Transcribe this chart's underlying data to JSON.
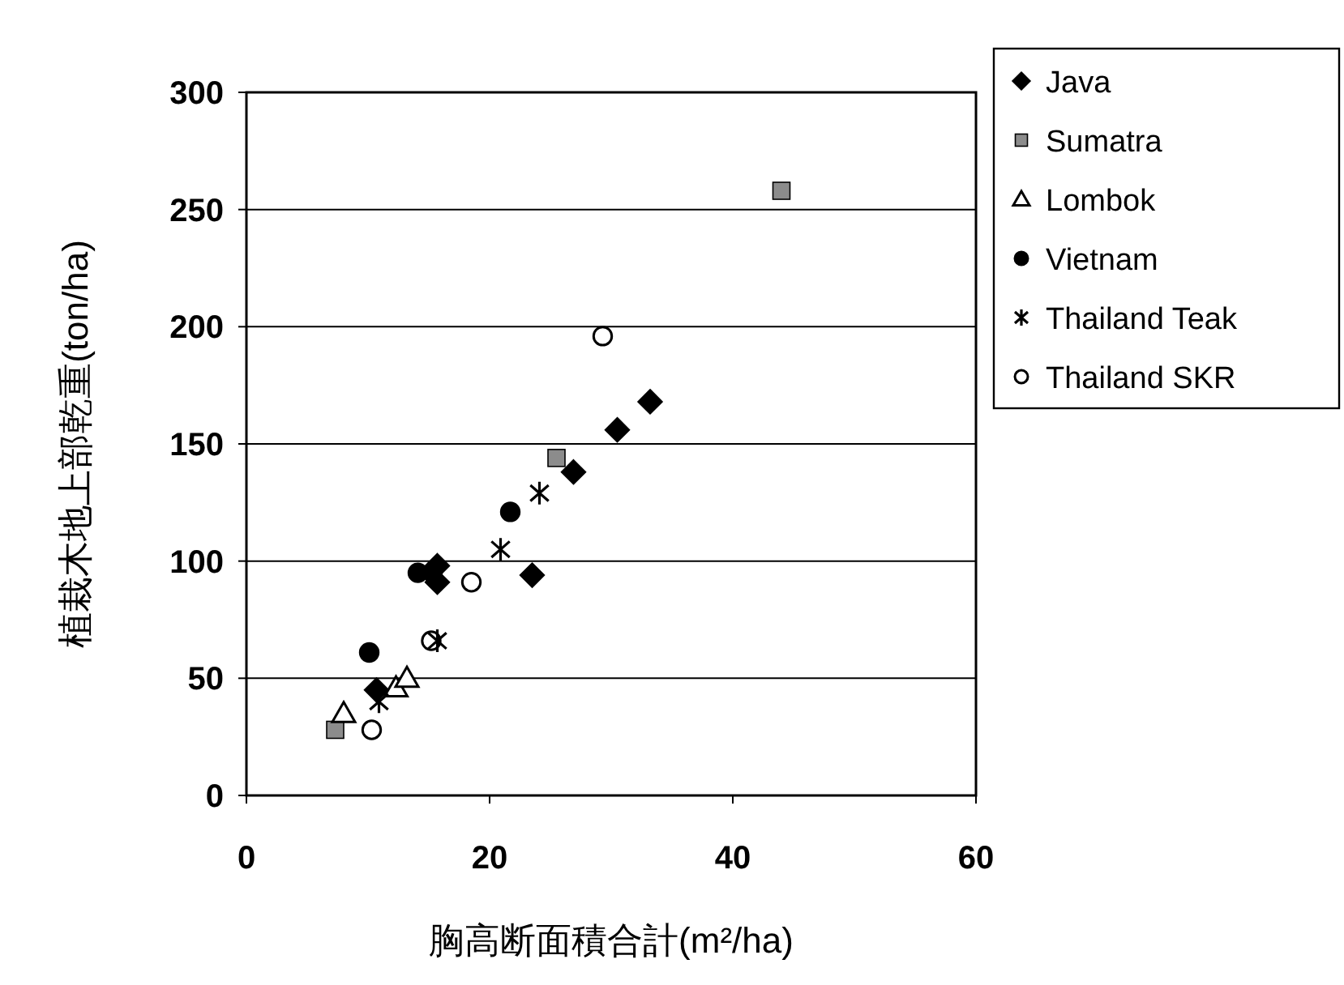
{
  "chart_data": {
    "type": "scatter",
    "xlabel": "胸高断面積合計(m²/ha)",
    "ylabel": "植栽木地上部乾重(ton/ha)",
    "xlim": [
      0,
      60
    ],
    "xticks": [
      0,
      20,
      40,
      60
    ],
    "ylim": [
      0,
      300
    ],
    "yticks": [
      0,
      50,
      100,
      150,
      200,
      250,
      300
    ],
    "grid": "y",
    "legend": "right",
    "series": [
      {
        "name": "Java",
        "color": "#000000",
        "marker": "diamond",
        "x": [
          10.7,
          15.7,
          15.7,
          23.5,
          26.9,
          30.5,
          33.2
        ],
        "values": [
          45,
          98,
          91,
          94,
          138,
          156,
          168
        ]
      },
      {
        "name": "Sumatra",
        "color": "#8c8c8c",
        "marker": "square",
        "x": [
          7.3,
          25.5,
          44
        ],
        "values": [
          28,
          144,
          258
        ]
      },
      {
        "name": "Lombok",
        "color": "#ffffff",
        "marker": "triangle",
        "x": [
          8,
          12.3,
          13.2
        ],
        "values": [
          35,
          46,
          50
        ]
      },
      {
        "name": "Vietnam",
        "color": "#000000",
        "marker": "circle",
        "x": [
          10.1,
          14.1,
          15.3,
          21.7
        ],
        "values": [
          61,
          95,
          95,
          121
        ]
      },
      {
        "name": "Thailand Teak",
        "color": "#000000",
        "marker": "cross",
        "x": [
          10.9,
          15.7,
          20.9,
          24.1
        ],
        "values": [
          40,
          66,
          105,
          129
        ]
      },
      {
        "name": "Thailand SKR",
        "color": "#ffffff",
        "marker": "circle",
        "x": [
          10.3,
          15.2,
          18.5,
          29.3
        ],
        "values": [
          28,
          66,
          91,
          196
        ]
      }
    ]
  }
}
